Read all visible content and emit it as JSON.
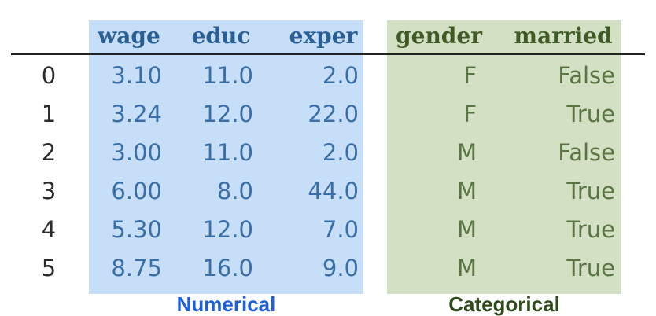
{
  "columns": [
    "wage",
    "educ",
    "exper",
    "gender",
    "married"
  ],
  "rows": [
    {
      "index": "0",
      "wage": "3.10",
      "educ": "11.0",
      "exper": "2.0",
      "gender": "F",
      "married": "False"
    },
    {
      "index": "1",
      "wage": "3.24",
      "educ": "12.0",
      "exper": "22.0",
      "gender": "F",
      "married": "True"
    },
    {
      "index": "2",
      "wage": "3.00",
      "educ": "11.0",
      "exper": "2.0",
      "gender": "M",
      "married": "False"
    },
    {
      "index": "3",
      "wage": "6.00",
      "educ": "8.0",
      "exper": "44.0",
      "gender": "M",
      "married": "True"
    },
    {
      "index": "4",
      "wage": "5.30",
      "educ": "12.0",
      "exper": "7.0",
      "gender": "M",
      "married": "True"
    },
    {
      "index": "5",
      "wage": "8.75",
      "educ": "16.0",
      "exper": "9.0",
      "gender": "M",
      "married": "True"
    }
  ],
  "groups": {
    "numerical": "Numerical",
    "categorical": "Categorical"
  },
  "colors": {
    "numerical_fill": "#c6def8",
    "categorical_fill": "#d3e0c3",
    "numerical_label": "#1e5fe0",
    "categorical_label": "#2e4a1a"
  }
}
